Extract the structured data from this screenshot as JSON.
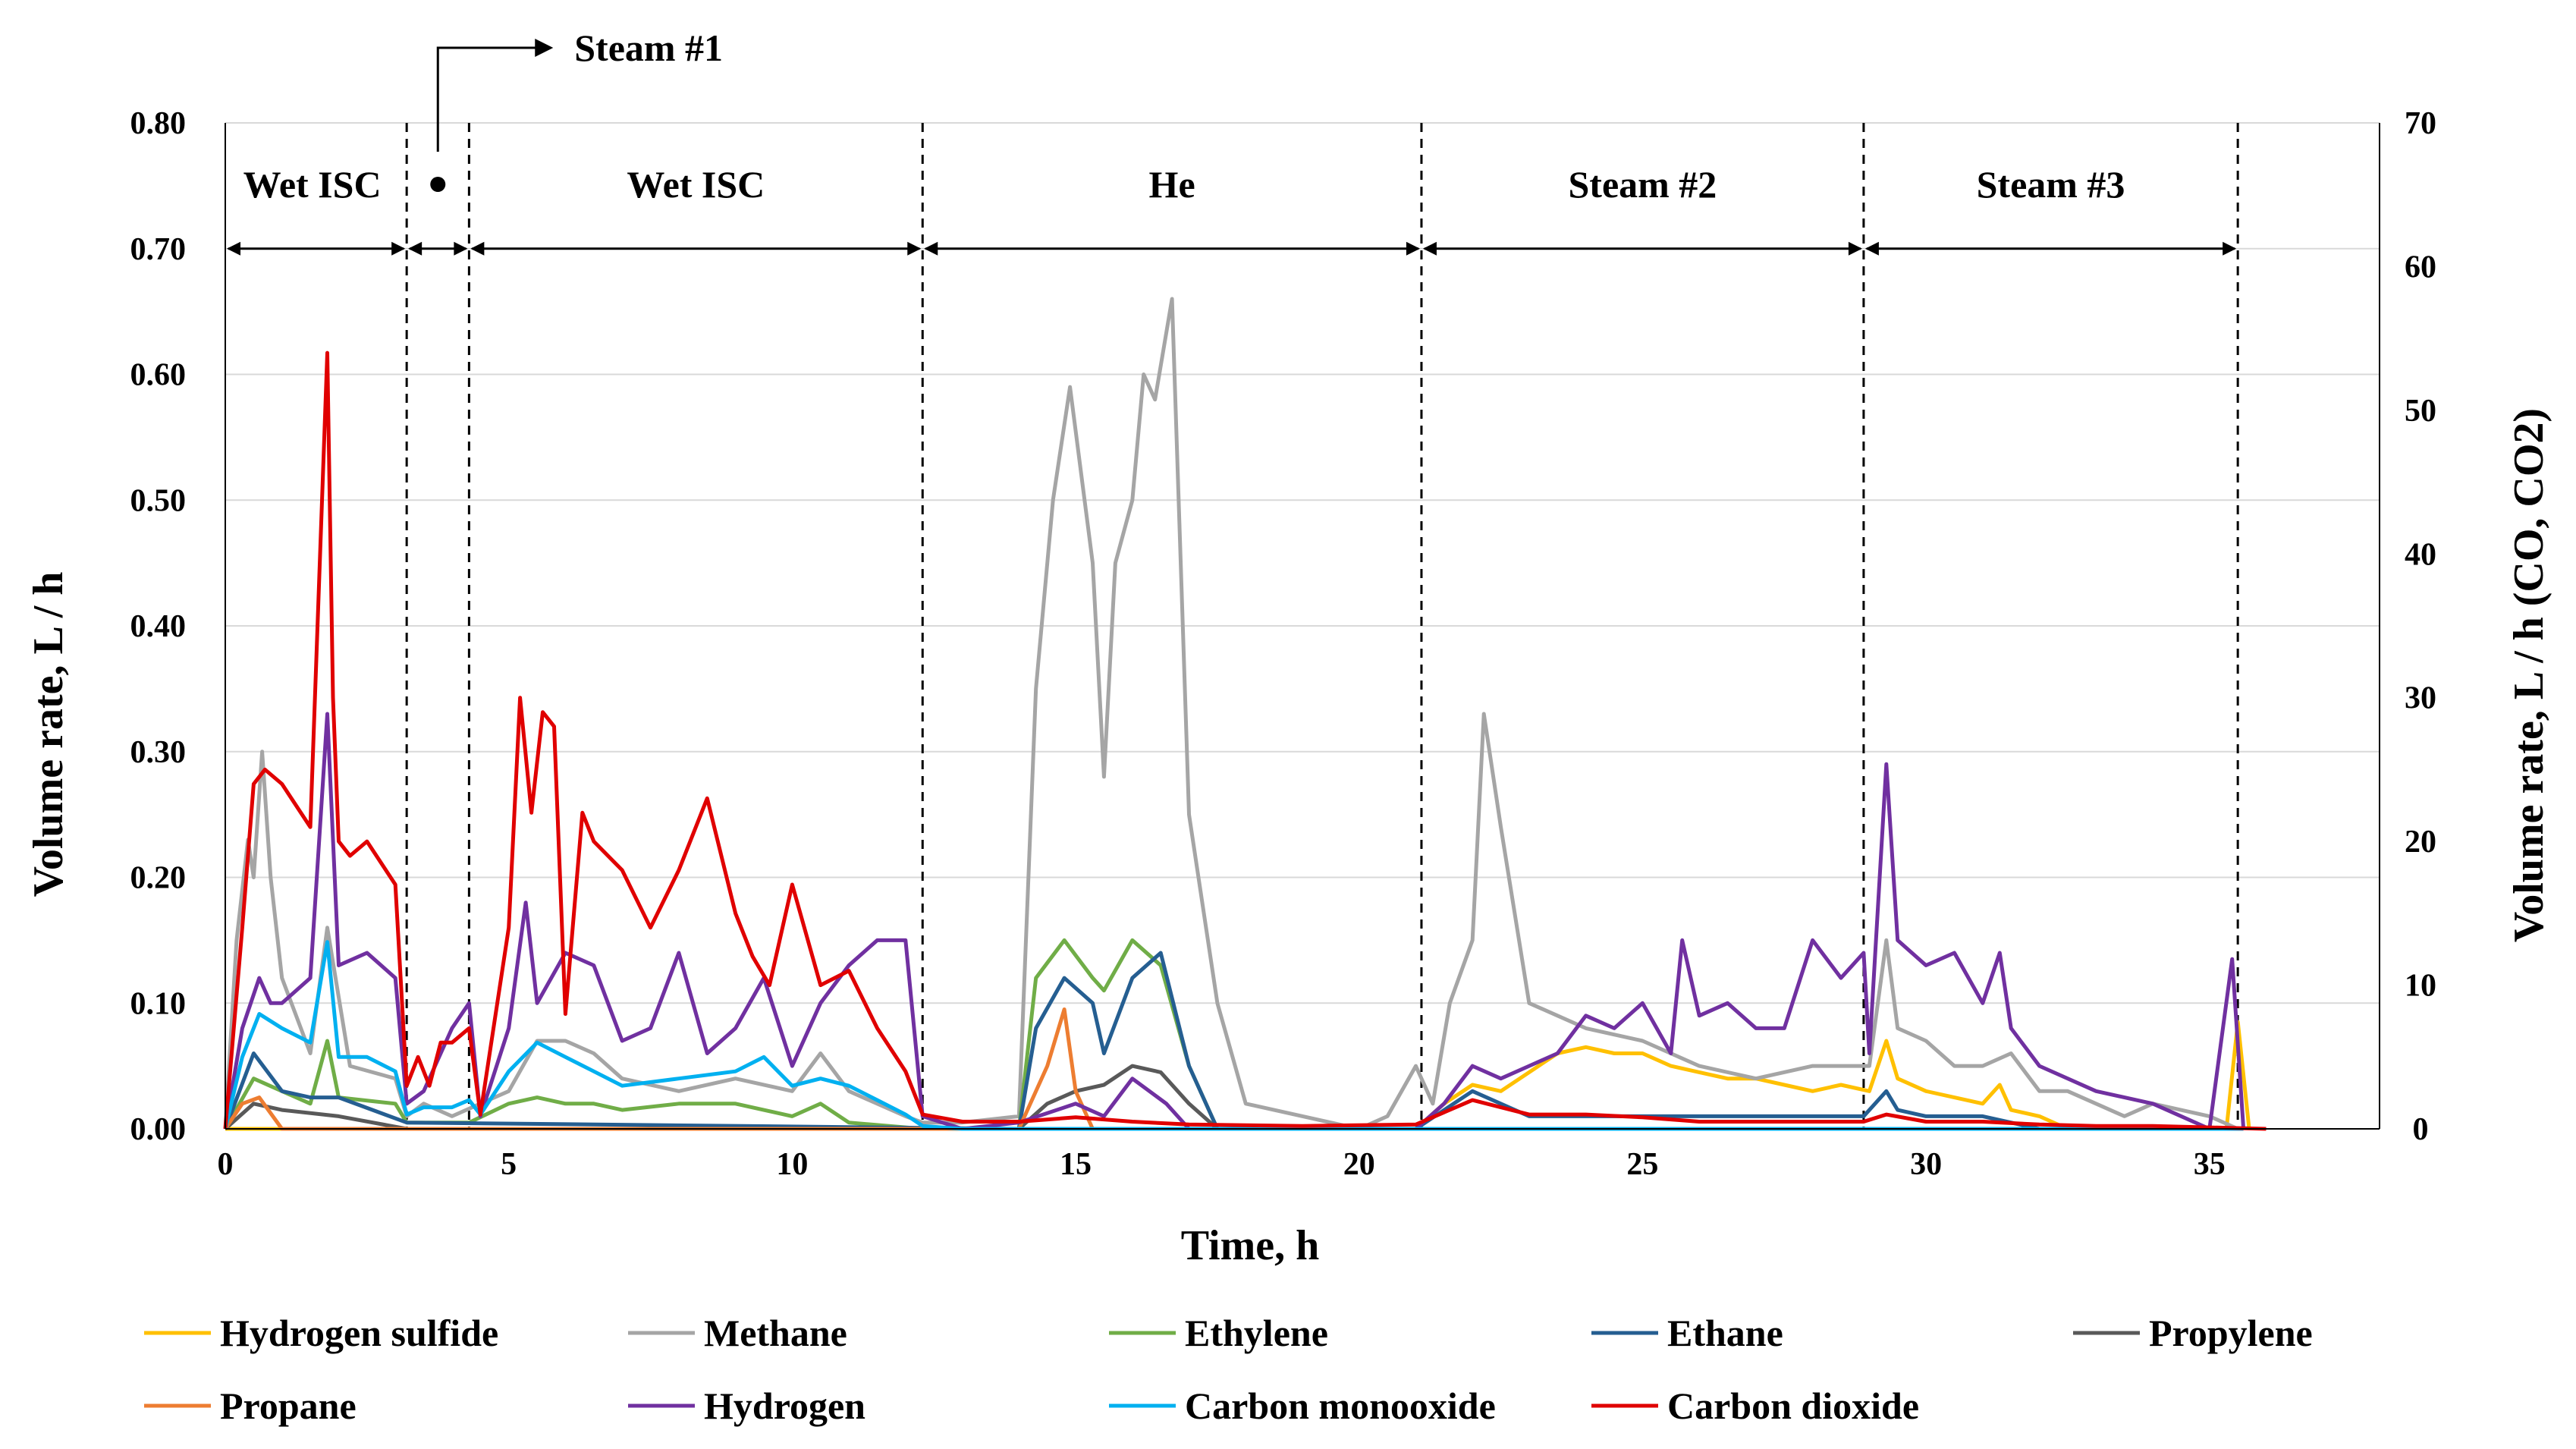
{
  "chart_data": {
    "type": "line",
    "xlabel": "Time, h",
    "ylabel_left": "Volume rate, L / h",
    "ylabel_right": "Volume rate, L / h (CO, CO2)",
    "xlim": [
      0,
      38
    ],
    "ylim_left": [
      0,
      0.8
    ],
    "ylim_right": [
      0,
      70
    ],
    "x_ticks": [
      0,
      5,
      10,
      15,
      20,
      25,
      30,
      35
    ],
    "x_tick_labels": [
      "0",
      "5",
      "10",
      "15",
      "20",
      "25",
      "30",
      "35"
    ],
    "y_left_ticks": [
      0,
      0.1,
      0.2,
      0.3,
      0.4,
      0.5,
      0.6,
      0.7,
      0.8
    ],
    "y_left_tick_labels": [
      "0.00",
      "0.10",
      "0.20",
      "0.30",
      "0.40",
      "0.50",
      "0.60",
      "0.70",
      "0.80"
    ],
    "y_right_ticks": [
      0,
      10,
      20,
      30,
      40,
      50,
      60,
      70
    ],
    "y_right_tick_labels": [
      "0",
      "10",
      "20",
      "30",
      "40",
      "50",
      "60",
      "70"
    ],
    "grid": "horizontal",
    "phase_boundaries": [
      3.2,
      4.3,
      12.3,
      21.1,
      28.9,
      35.5
    ],
    "phases": [
      {
        "label": "Wet ISC",
        "start": 0,
        "end": 3.2
      },
      {
        "label": "Steam #1",
        "start": 3.2,
        "end": 4.3
      },
      {
        "label": "Wet ISC",
        "start": 4.3,
        "end": 12.3
      },
      {
        "label": "He",
        "start": 12.3,
        "end": 21.1
      },
      {
        "label": "Steam #2",
        "start": 21.1,
        "end": 28.9
      },
      {
        "label": "Steam #3",
        "start": 28.9,
        "end": 35.5
      }
    ],
    "series": [
      {
        "name": "Hydrogen sulfide",
        "color": "#FFC000",
        "axis": "left",
        "x": [
          0,
          21,
          21.5,
          22,
          22.5,
          23,
          23.5,
          24,
          24.5,
          25,
          25.5,
          26,
          26.5,
          27,
          27.5,
          28,
          28.5,
          29,
          29.3,
          29.5,
          30,
          30.5,
          31,
          31.3,
          31.5,
          32,
          32.5,
          33,
          35.3,
          35.5,
          35.7
        ],
        "y": [
          0,
          0,
          0.02,
          0.035,
          0.03,
          0.045,
          0.06,
          0.065,
          0.06,
          0.06,
          0.05,
          0.045,
          0.04,
          0.04,
          0.035,
          0.03,
          0.035,
          0.03,
          0.07,
          0.04,
          0.03,
          0.025,
          0.02,
          0.035,
          0.015,
          0.01,
          0,
          0,
          0,
          0.085,
          0
        ]
      },
      {
        "name": "Methane",
        "color": "#A5A5A5",
        "axis": "left",
        "x": [
          0,
          0.2,
          0.4,
          0.5,
          0.65,
          0.8,
          1.0,
          1.5,
          1.8,
          2.2,
          3.0,
          3.2,
          3.5,
          4.0,
          4.5,
          5.0,
          5.5,
          6.0,
          6.5,
          7.0,
          8.0,
          9.0,
          10.0,
          10.5,
          11.0,
          12.0,
          12.3,
          13.0,
          14.0,
          14.3,
          14.6,
          14.9,
          15.3,
          15.5,
          15.7,
          16.0,
          16.2,
          16.4,
          16.7,
          17.0,
          17.5,
          18.0,
          20.0,
          20.5,
          21.0,
          21.3,
          21.6,
          22.0,
          22.2,
          22.5,
          23.0,
          23.5,
          24.0,
          25.0,
          26.0,
          27.0,
          28.0,
          29.0,
          29.3,
          29.5,
          30.0,
          30.5,
          31.0,
          31.5,
          32.0,
          32.5,
          33.5,
          34.0,
          35.0,
          35.5
        ],
        "y": [
          0,
          0.15,
          0.23,
          0.2,
          0.3,
          0.2,
          0.12,
          0.06,
          0.16,
          0.05,
          0.04,
          0.01,
          0.02,
          0.01,
          0.02,
          0.03,
          0.07,
          0.07,
          0.06,
          0.04,
          0.03,
          0.04,
          0.03,
          0.06,
          0.03,
          0.01,
          0.005,
          0.005,
          0.01,
          0.35,
          0.5,
          0.59,
          0.45,
          0.28,
          0.45,
          0.5,
          0.6,
          0.58,
          0.66,
          0.25,
          0.1,
          0.02,
          0,
          0.01,
          0.05,
          0.02,
          0.1,
          0.15,
          0.33,
          0.24,
          0.1,
          0.09,
          0.08,
          0.07,
          0.05,
          0.04,
          0.05,
          0.05,
          0.15,
          0.08,
          0.07,
          0.05,
          0.05,
          0.06,
          0.03,
          0.03,
          0.01,
          0.02,
          0.01,
          0
        ]
      },
      {
        "name": "Ethylene",
        "color": "#70AD47",
        "axis": "left",
        "x": [
          0,
          0.5,
          1.0,
          1.5,
          1.8,
          2.0,
          3.0,
          3.2,
          4.3,
          5.0,
          5.5,
          6.0,
          6.5,
          7.0,
          8.0,
          9.0,
          10.0,
          10.5,
          11.0,
          12.3,
          14.0,
          14.3,
          14.8,
          15.3,
          15.5,
          16.0,
          16.5,
          17.0,
          17.5
        ],
        "y": [
          0,
          0.04,
          0.03,
          0.02,
          0.07,
          0.025,
          0.02,
          0.005,
          0.005,
          0.02,
          0.025,
          0.02,
          0.02,
          0.015,
          0.02,
          0.02,
          0.01,
          0.02,
          0.005,
          0,
          0,
          0.12,
          0.15,
          0.12,
          0.11,
          0.15,
          0.13,
          0.05,
          0
        ]
      },
      {
        "name": "Ethane",
        "color": "#255E91",
        "axis": "left",
        "x": [
          0,
          0.5,
          1.0,
          1.5,
          2.0,
          3.2,
          14.0,
          14.3,
          14.8,
          15.3,
          15.5,
          16.0,
          16.5,
          17.0,
          17.5,
          21.0,
          22.0,
          23.0,
          24.0,
          25.0,
          28.9,
          29.3,
          29.5,
          30.0,
          31.0,
          32.0
        ],
        "y": [
          0,
          0.06,
          0.03,
          0.025,
          0.025,
          0.005,
          0,
          0.08,
          0.12,
          0.1,
          0.06,
          0.12,
          0.14,
          0.05,
          0,
          0,
          0.03,
          0.01,
          0.01,
          0.01,
          0.01,
          0.03,
          0.015,
          0.01,
          0.01,
          0
        ]
      },
      {
        "name": "Propylene",
        "color": "#595959",
        "axis": "left",
        "x": [
          0,
          0.5,
          1.0,
          2.0,
          3.2,
          14.0,
          14.5,
          15.0,
          15.5,
          16.0,
          16.5,
          17.0,
          17.5
        ],
        "y": [
          0,
          0.02,
          0.015,
          0.01,
          0,
          0,
          0.02,
          0.03,
          0.035,
          0.05,
          0.045,
          0.02,
          0
        ]
      },
      {
        "name": "Propane",
        "color": "#ED7D31",
        "axis": "left",
        "x": [
          0,
          0.3,
          0.6,
          1.0,
          14.0,
          14.5,
          14.8,
          15.0,
          15.3
        ],
        "y": [
          0,
          0.02,
          0.025,
          0,
          0,
          0.05,
          0.095,
          0.03,
          0
        ]
      },
      {
        "name": "Hydrogen",
        "color": "#7030A0",
        "axis": "left",
        "x": [
          0,
          0.3,
          0.6,
          0.8,
          1.0,
          1.5,
          1.8,
          2.0,
          2.5,
          3.0,
          3.2,
          3.5,
          4.0,
          4.3,
          4.5,
          5.0,
          5.3,
          5.5,
          6.0,
          6.5,
          7.0,
          7.5,
          8.0,
          8.5,
          9.0,
          9.5,
          10.0,
          10.5,
          11.0,
          11.5,
          12.0,
          12.3,
          13.0,
          14.0,
          15.0,
          15.5,
          16.0,
          16.3,
          16.6,
          17.0,
          21.0,
          21.5,
          22.0,
          22.5,
          23.0,
          23.5,
          24.0,
          24.5,
          25.0,
          25.5,
          25.7,
          26.0,
          26.5,
          27.0,
          27.5,
          28.0,
          28.5,
          28.9,
          29.0,
          29.3,
          29.5,
          30.0,
          30.5,
          31.0,
          31.3,
          31.5,
          32.0,
          33.0,
          34.0,
          35.0,
          35.4,
          35.6
        ],
        "y": [
          0,
          0.08,
          0.12,
          0.1,
          0.1,
          0.12,
          0.33,
          0.13,
          0.14,
          0.12,
          0.02,
          0.03,
          0.08,
          0.1,
          0.01,
          0.08,
          0.18,
          0.1,
          0.14,
          0.13,
          0.07,
          0.08,
          0.14,
          0.06,
          0.08,
          0.12,
          0.05,
          0.1,
          0.13,
          0.15,
          0.15,
          0.01,
          0,
          0.005,
          0.02,
          0.01,
          0.04,
          0.03,
          0.02,
          0,
          0,
          0.02,
          0.05,
          0.04,
          0.05,
          0.06,
          0.09,
          0.08,
          0.1,
          0.06,
          0.15,
          0.09,
          0.1,
          0.08,
          0.08,
          0.15,
          0.12,
          0.14,
          0.06,
          0.29,
          0.15,
          0.13,
          0.14,
          0.1,
          0.14,
          0.08,
          0.05,
          0.03,
          0.02,
          0,
          0.135,
          0
        ]
      },
      {
        "name": "Carbon monooxide",
        "color": "#00B0F0",
        "axis": "right",
        "x": [
          0,
          0.3,
          0.6,
          1.0,
          1.5,
          1.8,
          2.0,
          2.5,
          3.0,
          3.2,
          3.5,
          4.0,
          4.3,
          4.5,
          5.0,
          5.5,
          6.0,
          6.5,
          7.0,
          8.0,
          9.0,
          9.5,
          10.0,
          10.5,
          11.0,
          11.5,
          12.0,
          12.3,
          13.0,
          35.6
        ],
        "y": [
          0,
          5,
          8,
          7,
          6,
          13,
          5,
          5,
          4,
          1,
          1.5,
          1.5,
          2,
          1,
          4,
          6,
          5,
          4,
          3,
          3.5,
          4,
          5,
          3,
          3.5,
          3,
          2,
          1,
          0.2,
          0,
          0
        ]
      },
      {
        "name": "Carbon dioxide",
        "color": "#E00000",
        "axis": "right",
        "x": [
          0,
          0.3,
          0.5,
          0.7,
          1.0,
          1.5,
          1.8,
          1.9,
          2.0,
          2.2,
          2.5,
          3.0,
          3.2,
          3.4,
          3.6,
          3.8,
          4.0,
          4.3,
          4.5,
          5.0,
          5.2,
          5.4,
          5.6,
          5.8,
          6.0,
          6.3,
          6.5,
          7.0,
          7.5,
          8.0,
          8.5,
          9.0,
          9.3,
          9.6,
          10.0,
          10.5,
          11.0,
          11.5,
          12.0,
          12.3,
          13.0,
          14.0,
          15.0,
          16.0,
          17.0,
          19.0,
          21.0,
          22.0,
          23.0,
          24.0,
          25.0,
          26.0,
          28.9,
          29.3,
          30.0,
          31.0,
          32.0,
          33.0,
          34.0,
          35.0,
          36.0
        ],
        "y": [
          0,
          14,
          24,
          25,
          24,
          21,
          54,
          30,
          20,
          19,
          20,
          17,
          3,
          5,
          3,
          6,
          6,
          7,
          1,
          14,
          30,
          22,
          29,
          28,
          8,
          22,
          20,
          18,
          14,
          18,
          23,
          15,
          12,
          10,
          17,
          10,
          11,
          7,
          4,
          1,
          0.5,
          0.5,
          0.8,
          0.5,
          0.3,
          0.2,
          0.3,
          2,
          1,
          1,
          0.8,
          0.5,
          0.5,
          1,
          0.5,
          0.5,
          0.3,
          0.2,
          0.2,
          0.1,
          0
        ]
      }
    ]
  }
}
